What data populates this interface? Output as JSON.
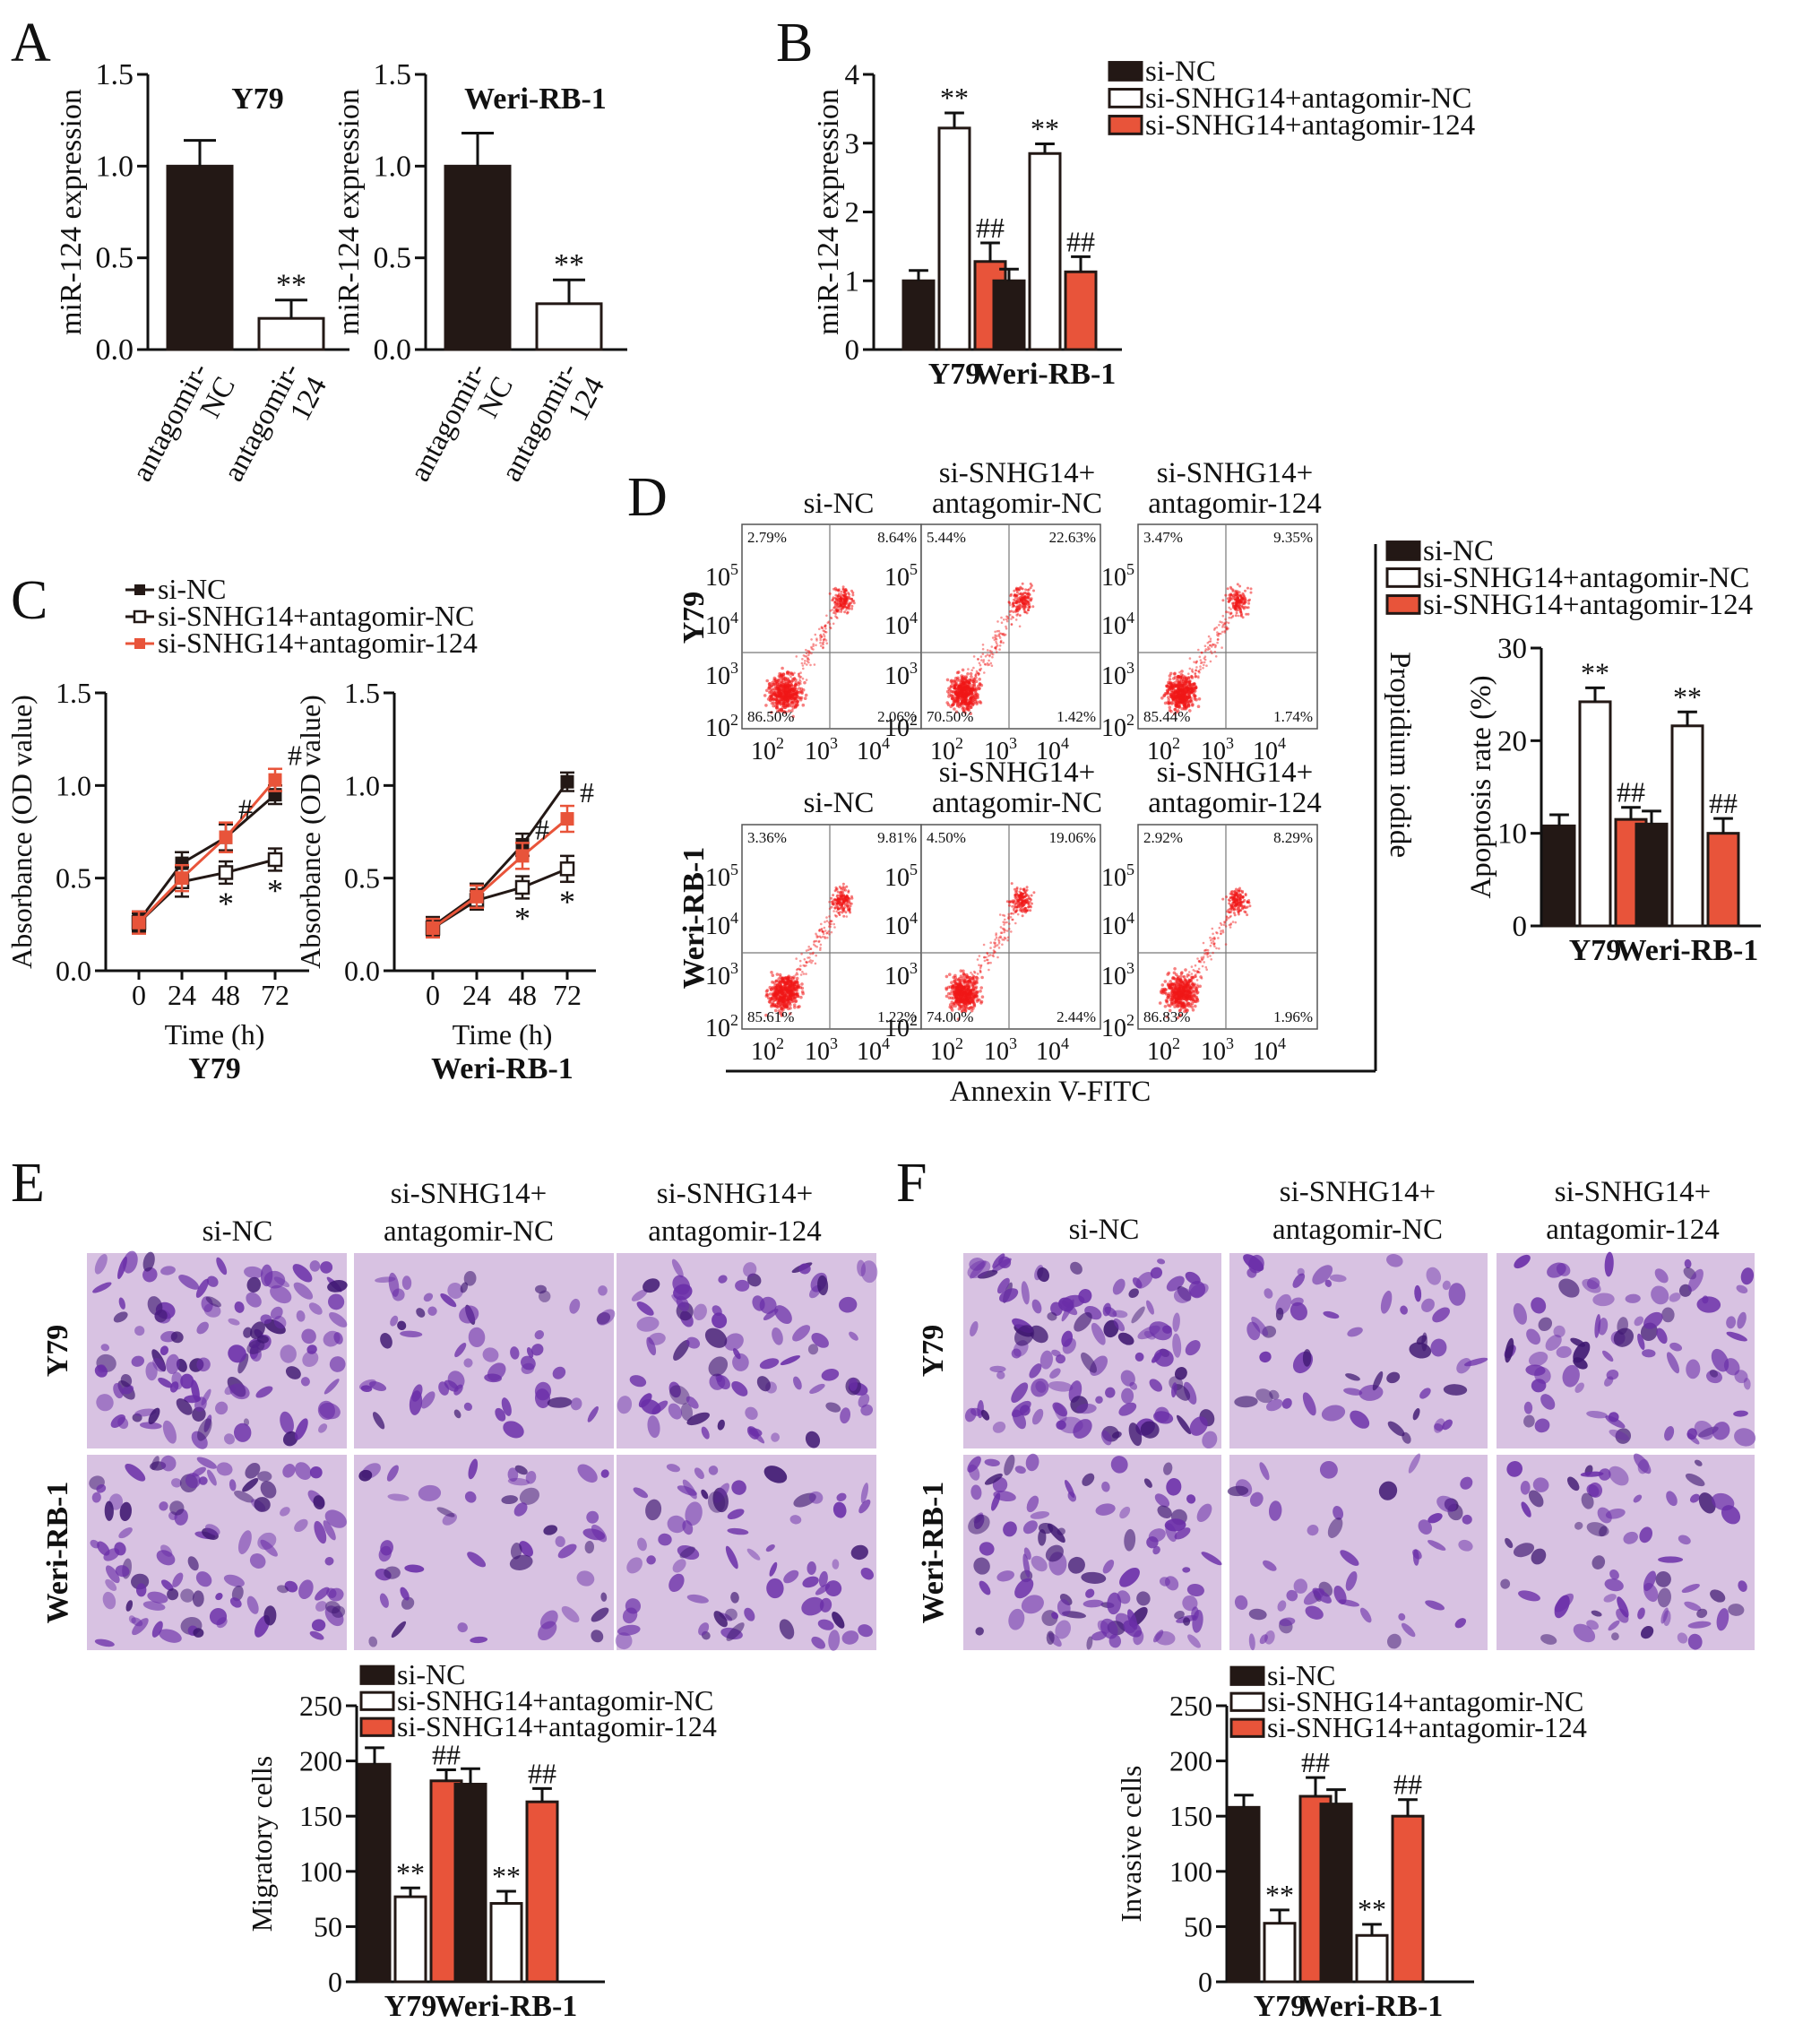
{
  "colors": {
    "black": "#231815",
    "white": "#ffffff",
    "orange": "#e8543a",
    "axis": "#111111",
    "stain_bg": "#d8c2e2",
    "stain_cell": "#6a2ea8",
    "stain_dark": "#3d1670",
    "flow_dot": "#f01818"
  },
  "legend3": [
    "si-NC",
    "si-SNHG14+antagomir-NC",
    "si-SNHG14+antagomir-124"
  ],
  "panel_letters": {
    "A": "A",
    "B": "B",
    "C": "C",
    "D": "D",
    "E": "E",
    "F": "F"
  },
  "panel_d": {
    "col_titles": [
      [
        "si-NC"
      ],
      [
        "si-SNHG14+",
        "antagomir-NC"
      ],
      [
        "si-SNHG14+",
        "antagomir-124"
      ]
    ],
    "row_labels": [
      "Y79",
      "Weri-RB-1"
    ],
    "x_axis_label": "Annexin V-FITC",
    "y_axis_label": "Propidium iodide",
    "tick_base": "10",
    "y_tick_exps": [
      "2",
      "3",
      "4",
      "5"
    ],
    "x_tick_exps": [
      "2",
      "3",
      "4"
    ],
    "quadrants": [
      [
        {
          "ul": "2.79%",
          "ur": "8.64%",
          "ll": "86.50%",
          "lr": "2.06%"
        },
        {
          "ul": "5.44%",
          "ur": "22.63%",
          "ll": "70.50%",
          "lr": "1.42%"
        },
        {
          "ul": "3.47%",
          "ur": "9.35%",
          "ll": "85.44%",
          "lr": "1.74%"
        }
      ],
      [
        {
          "ul": "3.36%",
          "ur": "9.81%",
          "ll": "85.61%",
          "lr": "1.22%"
        },
        {
          "ul": "4.50%",
          "ur": "19.06%",
          "ll": "74.00%",
          "lr": "2.44%"
        },
        {
          "ul": "2.92%",
          "ur": "8.29%",
          "ll": "86.83%",
          "lr": "1.96%"
        }
      ]
    ]
  },
  "panel_e": {
    "col_titles": [
      [
        "si-NC"
      ],
      [
        "si-SNHG14+",
        "antagomir-NC"
      ],
      [
        "si-SNHG14+",
        "antagomir-124"
      ]
    ],
    "row_labels": [
      "Y79",
      "Weri-RB-1"
    ]
  },
  "panel_f": {
    "col_titles": [
      [
        "si-NC"
      ],
      [
        "si-SNHG14+",
        "antagomir-NC"
      ],
      [
        "si-SNHG14+",
        "antagomir-124"
      ]
    ],
    "row_labels": [
      "Y79",
      "Weri-RB-1"
    ]
  },
  "chart_data": [
    {
      "id": "A1",
      "type": "bar",
      "title": "Y79",
      "ylabel": "miR-124 expression",
      "ylim": [
        0,
        1.5
      ],
      "yticks": [
        "0.0",
        "0.5",
        "1.0",
        "1.5"
      ],
      "categories": [
        [
          "antagomir-",
          "NC"
        ],
        [
          "antagomir-",
          "124"
        ]
      ],
      "values": [
        1.0,
        0.17
      ],
      "errors": [
        0.14,
        0.1
      ],
      "colors": [
        "black",
        "white"
      ],
      "annotations": [
        "",
        "**"
      ]
    },
    {
      "id": "A2",
      "type": "bar",
      "title": "Weri-RB-1",
      "ylabel": "miR-124 expression",
      "ylim": [
        0,
        1.5
      ],
      "yticks": [
        "0.0",
        "0.5",
        "1.0",
        "1.5"
      ],
      "categories": [
        [
          "antagomir-",
          "NC"
        ],
        [
          "antagomir-",
          "124"
        ]
      ],
      "values": [
        1.0,
        0.25
      ],
      "errors": [
        0.18,
        0.13
      ],
      "colors": [
        "black",
        "white"
      ],
      "annotations": [
        "",
        "**"
      ]
    },
    {
      "id": "B",
      "type": "bar",
      "ylabel": "miR-124 expression",
      "ylim": [
        0,
        4
      ],
      "yticks": [
        "0",
        "1",
        "2",
        "3",
        "4"
      ],
      "categories": [
        "Y79",
        "Weri-RB-1"
      ],
      "series": [
        {
          "name": "si-NC",
          "values": [
            1.0,
            1.0
          ],
          "errors": [
            0.15,
            0.17
          ],
          "annotations": [
            "",
            ""
          ]
        },
        {
          "name": "si-SNHG14+antagomir-NC",
          "values": [
            3.22,
            2.85
          ],
          "errors": [
            0.22,
            0.14
          ],
          "annotations": [
            "**",
            "**"
          ]
        },
        {
          "name": "si-SNHG14+antagomir-124",
          "values": [
            1.28,
            1.13
          ],
          "errors": [
            0.27,
            0.22
          ],
          "annotations": [
            "##",
            "##"
          ]
        }
      ]
    },
    {
      "id": "C1",
      "type": "line",
      "ylabel": "Absorbance (OD value)",
      "xlabel": "Time (h)",
      "subtitle": "Y79",
      "ylim": [
        0,
        1.5
      ],
      "yticks": [
        "0.0",
        "0.5",
        "1.0",
        "1.5"
      ],
      "x": [
        0,
        24,
        48,
        72
      ],
      "series": [
        {
          "name": "si-NC",
          "values": [
            0.27,
            0.58,
            0.72,
            0.95
          ],
          "errors": [
            0.05,
            0.06,
            0.07,
            0.05
          ]
        },
        {
          "name": "si-SNHG14+antagomir-NC",
          "values": [
            0.26,
            0.48,
            0.53,
            0.6
          ],
          "errors": [
            0.05,
            0.08,
            0.06,
            0.06
          ],
          "annotations": [
            "",
            "",
            "*",
            "*"
          ]
        },
        {
          "name": "si-SNHG14+antagomir-124",
          "values": [
            0.26,
            0.5,
            0.72,
            1.03
          ],
          "errors": [
            0.06,
            0.07,
            0.08,
            0.06
          ],
          "annotations": [
            "",
            "",
            "#",
            "#"
          ]
        }
      ]
    },
    {
      "id": "C2",
      "type": "line",
      "ylabel": "Absorbance (OD value)",
      "xlabel": "Time (h)",
      "subtitle": "Weri-RB-1",
      "ylim": [
        0,
        1.5
      ],
      "yticks": [
        "0.0",
        "0.5",
        "1.0",
        "1.5"
      ],
      "x": [
        0,
        24,
        48,
        72
      ],
      "series": [
        {
          "name": "si-NC",
          "values": [
            0.24,
            0.41,
            0.68,
            1.02
          ],
          "errors": [
            0.05,
            0.06,
            0.06,
            0.05
          ]
        },
        {
          "name": "si-SNHG14+antagomir-NC",
          "values": [
            0.23,
            0.38,
            0.45,
            0.55
          ],
          "errors": [
            0.05,
            0.05,
            0.06,
            0.07
          ],
          "annotations": [
            "",
            "",
            "*",
            "*"
          ]
        },
        {
          "name": "si-SNHG14+antagomir-124",
          "values": [
            0.23,
            0.4,
            0.62,
            0.82
          ],
          "errors": [
            0.05,
            0.06,
            0.07,
            0.07
          ],
          "annotations": [
            "",
            "",
            "#",
            "#"
          ]
        }
      ]
    },
    {
      "id": "D",
      "type": "bar",
      "ylabel": "Apoptosis rate (%)",
      "ylim": [
        0,
        30
      ],
      "yticks": [
        "0",
        "10",
        "20",
        "30"
      ],
      "categories": [
        "Y79",
        "Weri-RB-1"
      ],
      "series": [
        {
          "name": "si-NC",
          "values": [
            10.8,
            11.0
          ],
          "errors": [
            1.2,
            1.4
          ],
          "annotations": [
            "",
            ""
          ]
        },
        {
          "name": "si-SNHG14+antagomir-NC",
          "values": [
            24.2,
            21.6
          ],
          "errors": [
            1.5,
            1.5
          ],
          "annotations": [
            "**",
            "**"
          ]
        },
        {
          "name": "si-SNHG14+antagomir-124",
          "values": [
            11.5,
            10.0
          ],
          "errors": [
            1.3,
            1.6
          ],
          "annotations": [
            "##",
            "##"
          ]
        }
      ]
    },
    {
      "id": "E",
      "type": "bar",
      "ylabel": "Migratory cells",
      "ylim": [
        0,
        250
      ],
      "yticks": [
        "0",
        "50",
        "100",
        "150",
        "200",
        "250"
      ],
      "categories": [
        "Y79",
        "Weri-RB-1"
      ],
      "series": [
        {
          "name": "si-NC",
          "values": [
            197,
            179
          ],
          "errors": [
            15,
            14
          ],
          "annotations": [
            "",
            ""
          ]
        },
        {
          "name": "si-SNHG14+antagomir-NC",
          "values": [
            77,
            71
          ],
          "errors": [
            8,
            11
          ],
          "annotations": [
            "**",
            "**"
          ]
        },
        {
          "name": "si-SNHG14+antagomir-124",
          "values": [
            182,
            163
          ],
          "errors": [
            10,
            12
          ],
          "annotations": [
            "##",
            "##"
          ]
        }
      ]
    },
    {
      "id": "F",
      "type": "bar",
      "ylabel": "Invasive cells",
      "ylim": [
        0,
        250
      ],
      "yticks": [
        "0",
        "50",
        "100",
        "150",
        "200",
        "250"
      ],
      "categories": [
        "Y79",
        "Weri-RB-1"
      ],
      "series": [
        {
          "name": "si-NC",
          "values": [
            158,
            161
          ],
          "errors": [
            11,
            13
          ],
          "annotations": [
            "",
            ""
          ]
        },
        {
          "name": "si-SNHG14+antagomir-NC",
          "values": [
            53,
            42
          ],
          "errors": [
            12,
            10
          ],
          "annotations": [
            "**",
            "**"
          ]
        },
        {
          "name": "si-SNHG14+antagomir-124",
          "values": [
            168,
            150
          ],
          "errors": [
            17,
            15
          ],
          "annotations": [
            "##",
            "##"
          ]
        }
      ]
    }
  ]
}
